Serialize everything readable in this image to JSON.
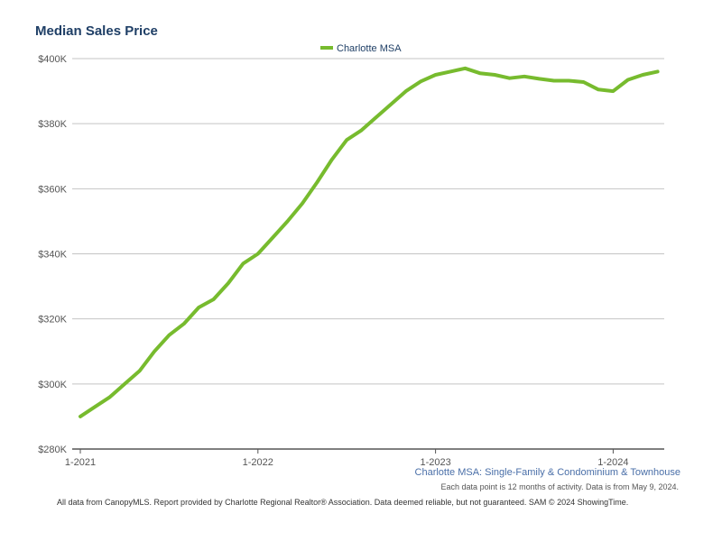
{
  "chart_data": {
    "type": "line",
    "title": "Median Sales Price",
    "subtitle": "Charlotte MSA: Single-Family & Condominium & Townhouse",
    "note": "Each data point is 12 months of activity. Data is from May 9, 2024.",
    "footer": "All data from CanopyMLS. Report provided by Charlotte Regional Realtor® Association. Data deemed reliable, but not guaranteed. SAM © 2024 ShowingTime.",
    "ylim": [
      280000,
      400000
    ],
    "y_ticks": [
      {
        "value": 280000,
        "label": "$280K"
      },
      {
        "value": 300000,
        "label": "$300K"
      },
      {
        "value": 320000,
        "label": "$320K"
      },
      {
        "value": 340000,
        "label": "$340K"
      },
      {
        "value": 360000,
        "label": "$360K"
      },
      {
        "value": 380000,
        "label": "$380K"
      },
      {
        "value": 400000,
        "label": "$400K"
      }
    ],
    "x_ticks": [
      {
        "index": 0,
        "label": "1-2021"
      },
      {
        "index": 12,
        "label": "1-2022"
      },
      {
        "index": 24,
        "label": "1-2023"
      },
      {
        "index": 36,
        "label": "1-2024"
      }
    ],
    "grid": true,
    "legend_position": "top-center",
    "series": [
      {
        "name": "Charlotte MSA",
        "color": "#77bb2e",
        "x": [
          "1-2021",
          "2-2021",
          "3-2021",
          "4-2021",
          "5-2021",
          "6-2021",
          "7-2021",
          "8-2021",
          "9-2021",
          "10-2021",
          "11-2021",
          "12-2021",
          "1-2022",
          "2-2022",
          "3-2022",
          "4-2022",
          "5-2022",
          "6-2022",
          "7-2022",
          "8-2022",
          "9-2022",
          "10-2022",
          "11-2022",
          "12-2022",
          "1-2023",
          "2-2023",
          "3-2023",
          "4-2023",
          "5-2023",
          "6-2023",
          "7-2023",
          "8-2023",
          "9-2023",
          "10-2023",
          "11-2023",
          "12-2023",
          "1-2024",
          "2-2024",
          "3-2024",
          "4-2024"
        ],
        "values": [
          290000,
          293000,
          296000,
          300000,
          304000,
          310000,
          315000,
          318500,
          323500,
          326000,
          331000,
          337000,
          340000,
          345000,
          350000,
          355500,
          362000,
          369000,
          375000,
          378000,
          382000,
          386000,
          390000,
          393000,
          395000,
          396000,
          397000,
          395500,
          395000,
          394000,
          394500,
          393800,
          393200,
          393200,
          392800,
          390500,
          390000,
          393500,
          395000,
          396000
        ]
      }
    ]
  }
}
